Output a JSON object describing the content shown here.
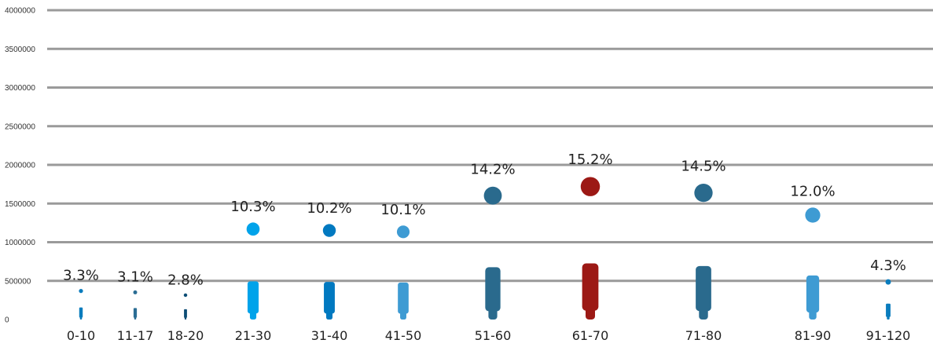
{
  "chart_data": {
    "type": "bar",
    "categories": [
      "0-10",
      "11-17",
      "18-20",
      "21-30",
      "31-40",
      "41-50",
      "51-60",
      "61-70",
      "71-80",
      "81-90",
      "91-120"
    ],
    "values": [
      410000,
      390000,
      350000,
      1300000,
      1280000,
      1260000,
      1780000,
      1910000,
      1820000,
      1500000,
      540000
    ],
    "percent_labels": [
      "3.3%",
      "3.1%",
      "2.8%",
      "10.3%",
      "10.2%",
      "10.1%",
      "14.2%",
      "15.2%",
      "14.5%",
      "12.0%",
      "4.3%"
    ],
    "colors": [
      "#0a7cbd",
      "#2b6d94",
      "#0c4d75",
      "#00a3ea",
      "#0179c0",
      "#3e9bd3",
      "#2a6a8d",
      "#9c1915",
      "#2a6a8d",
      "#3e9bd3",
      "#0a7cbd"
    ],
    "yticks": [
      "0",
      "500000",
      "1000000",
      "1500000",
      "2000000",
      "2500000",
      "3000000",
      "3500000",
      "4000000"
    ],
    "ylim": [
      0,
      4000000
    ],
    "grid": true,
    "title": "",
    "xlabel": "",
    "ylabel": "",
    "mark_shape": "person-icon"
  }
}
